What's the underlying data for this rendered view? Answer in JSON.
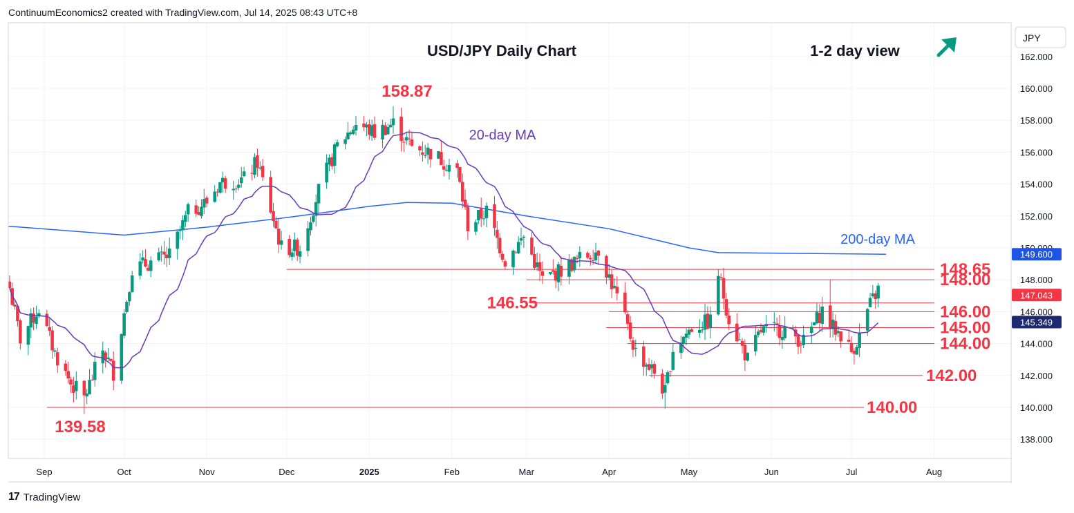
{
  "header": "ContinuumEconomics2 created with TradingView.com, Jul 14, 2025 08:43 UTC+8",
  "footer": {
    "logo": "17",
    "brand": "TradingView"
  },
  "chart_data": {
    "type": "candlestick",
    "title": "USD/JPY Daily Chart",
    "view_label": "1-2 day view",
    "view_arrow": "up-right",
    "currency": "JPY",
    "ylim": [
      136.5,
      164.5
    ],
    "yticks": [
      138,
      140,
      142,
      144,
      146,
      148,
      150,
      152,
      154,
      156,
      158,
      160,
      162
    ],
    "ytick_labels": [
      "138.000",
      "140.000",
      "142.000",
      "144.000",
      "146.000",
      "148.000",
      "150.000",
      "152.000",
      "154.000",
      "156.000",
      "158.000",
      "160.000",
      "162.000"
    ],
    "xticks": [
      {
        "label": "Sep",
        "date": "2024-09-01"
      },
      {
        "label": "Oct",
        "date": "2024-10-01"
      },
      {
        "label": "Nov",
        "date": "2024-11-01"
      },
      {
        "label": "Dec",
        "date": "2024-12-01"
      },
      {
        "label": "2025",
        "date": "2025-01-01",
        "bold": true
      },
      {
        "label": "Feb",
        "date": "2025-02-01"
      },
      {
        "label": "Mar",
        "date": "2025-03-01"
      },
      {
        "label": "Apr",
        "date": "2025-04-01"
      },
      {
        "label": "May",
        "date": "2025-05-01"
      },
      {
        "label": "Jun",
        "date": "2025-06-01"
      },
      {
        "label": "Jul",
        "date": "2025-07-01"
      },
      {
        "label": "Aug",
        "date": "2025-08-01"
      }
    ],
    "price_badges": [
      {
        "label": "149.600",
        "value": 149.6,
        "color": "#1e53e5"
      },
      {
        "label": "147.043",
        "value": 147.043,
        "color": "#f23645"
      },
      {
        "label": "145.349",
        "value": 145.349,
        "color": "#1e2a6e"
      }
    ],
    "levels": [
      {
        "label": "148.65",
        "value": 148.65,
        "from": "2024-12-01"
      },
      {
        "label": "148.00",
        "value": 148.0,
        "from": "2025-03-01"
      },
      {
        "label": "146.55",
        "value": 146.55,
        "from": "2025-03-03",
        "label_left": true
      },
      {
        "label": "146.00",
        "value": 146.0,
        "from": "2025-04-01"
      },
      {
        "label": "145.00",
        "value": 145.0,
        "from": "2025-03-31"
      },
      {
        "label": "144.00",
        "value": 144.0,
        "from": "2025-04-08"
      },
      {
        "label": "142.00",
        "value": 142.0,
        "from": "2025-04-16"
      },
      {
        "label": "140.00",
        "value": 140.0,
        "from": "2024-09-02"
      }
    ],
    "annotations": [
      {
        "text": "158.87",
        "date": "2025-01-10",
        "value": 158.87,
        "color": "#f23645"
      },
      {
        "text": "139.58",
        "date": "2024-09-16",
        "value": 139.58,
        "color": "#f23645"
      },
      {
        "text": "20-day MA",
        "date": "2025-01-24",
        "value": 156.9,
        "color": "#673ab7"
      },
      {
        "text": "200-day MA",
        "date": "2025-05-16",
        "value": 150.5,
        "color": "#2962ff"
      }
    ],
    "colors": {
      "up": "#089981",
      "down": "#f23645",
      "ma20": "#673ab7",
      "ma200": "#2962ff",
      "level": "#f23645",
      "grid": "#f0f3fa"
    },
    "anchors": [
      [
        "2024-08-19",
        147.5
      ],
      [
        "2024-08-23",
        144.3
      ],
      [
        "2024-08-30",
        146.2
      ],
      [
        "2024-09-05",
        143.4
      ],
      [
        "2024-09-11",
        141.5
      ],
      [
        "2024-09-16",
        140.6
      ],
      [
        "2024-09-23",
        143.6
      ],
      [
        "2024-09-27",
        142.2
      ],
      [
        "2024-10-04",
        148.7
      ],
      [
        "2024-10-11",
        149.1
      ],
      [
        "2024-10-18",
        149.5
      ],
      [
        "2024-10-25",
        152.2
      ],
      [
        "2024-11-01",
        152.9
      ],
      [
        "2024-11-06",
        154.1
      ],
      [
        "2024-11-15",
        154.3
      ],
      [
        "2024-11-20",
        155.4
      ],
      [
        "2024-11-29",
        150.0
      ],
      [
        "2024-12-06",
        150.0
      ],
      [
        "2024-12-13",
        153.6
      ],
      [
        "2024-12-20",
        156.4
      ],
      [
        "2024-12-27",
        157.8
      ],
      [
        "2025-01-03",
        157.2
      ],
      [
        "2025-01-10",
        157.8
      ],
      [
        "2025-01-17",
        156.3
      ],
      [
        "2025-01-24",
        156.0
      ],
      [
        "2025-01-31",
        155.2
      ],
      [
        "2025-02-03",
        154.8
      ],
      [
        "2025-02-07",
        151.4
      ],
      [
        "2025-02-14",
        152.3
      ],
      [
        "2025-02-21",
        149.2
      ],
      [
        "2025-02-28",
        150.7
      ],
      [
        "2025-03-07",
        148.0
      ],
      [
        "2025-03-14",
        148.6
      ],
      [
        "2025-03-21",
        149.3
      ],
      [
        "2025-03-28",
        149.9
      ],
      [
        "2025-04-04",
        146.9
      ],
      [
        "2025-04-11",
        143.5
      ],
      [
        "2025-04-18",
        142.2
      ],
      [
        "2025-04-22",
        140.9
      ],
      [
        "2025-04-25",
        143.7
      ],
      [
        "2025-05-02",
        145.0
      ],
      [
        "2025-05-09",
        145.4
      ],
      [
        "2025-05-12",
        148.4
      ],
      [
        "2025-05-16",
        145.6
      ],
      [
        "2025-05-23",
        143.0
      ],
      [
        "2025-05-28",
        144.8
      ],
      [
        "2025-06-06",
        144.9
      ],
      [
        "2025-06-13",
        144.1
      ],
      [
        "2025-06-20",
        146.1
      ],
      [
        "2025-06-24",
        145.0
      ],
      [
        "2025-06-27",
        144.6
      ],
      [
        "2025-07-01",
        143.5
      ],
      [
        "2025-07-04",
        144.5
      ],
      [
        "2025-07-07",
        146.1
      ],
      [
        "2025-07-11",
        147.4
      ]
    ],
    "ma200": [
      [
        "2024-08-19",
        151.35
      ],
      [
        "2024-10-01",
        150.8
      ],
      [
        "2024-11-01",
        151.3
      ],
      [
        "2024-12-01",
        151.9
      ],
      [
        "2025-01-01",
        152.6
      ],
      [
        "2025-01-15",
        152.85
      ],
      [
        "2025-02-01",
        152.8
      ],
      [
        "2025-03-01",
        152.0
      ],
      [
        "2025-04-01",
        151.2
      ],
      [
        "2025-05-01",
        150.0
      ],
      [
        "2025-05-12",
        149.7
      ],
      [
        "2025-06-15",
        149.65
      ],
      [
        "2025-07-14",
        149.6
      ]
    ]
  }
}
